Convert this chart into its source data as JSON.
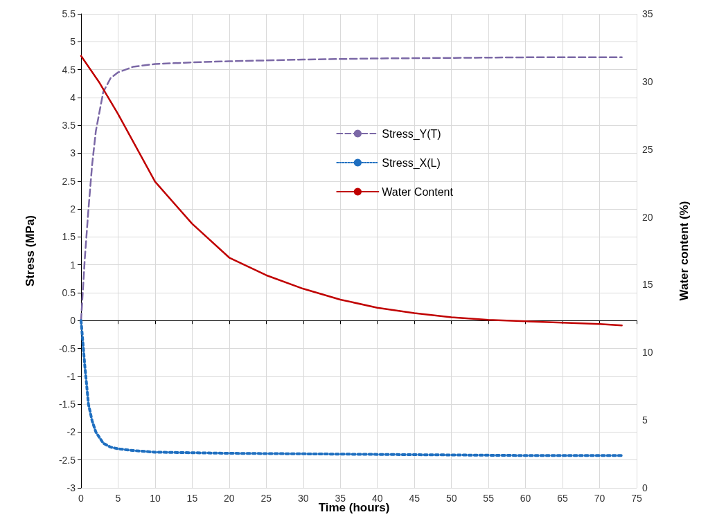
{
  "chart_data": {
    "type": "line",
    "xlabel": "Time (hours)",
    "ylabel": "Stress (MPa)",
    "y2label": "Water content (%)",
    "xlim": [
      0,
      75
    ],
    "xticks": [
      0,
      5,
      10,
      15,
      20,
      25,
      30,
      35,
      40,
      45,
      50,
      55,
      60,
      65,
      70,
      75
    ],
    "ylim": [
      -3,
      5.5
    ],
    "yticks": [
      -3,
      -2.5,
      -2,
      -1.5,
      -1,
      -0.5,
      0,
      0.5,
      1,
      1.5,
      2,
      2.5,
      3,
      3.5,
      4,
      4.5,
      5,
      5.5
    ],
    "y2lim": [
      0,
      35
    ],
    "y2ticks": [
      0,
      5,
      10,
      15,
      20,
      25,
      30,
      35
    ],
    "grid": true,
    "legend": "right",
    "marker": "none",
    "series": [
      {
        "name": "Stress_Y(T)",
        "color": "#7b68a6",
        "line_style": "dashed",
        "x": [
          0,
          0.5,
          1,
          1.5,
          2,
          3,
          4,
          5,
          7,
          10,
          15,
          20,
          30,
          40,
          50,
          60,
          73
        ],
        "values": [
          0,
          1.1,
          2.0,
          2.8,
          3.4,
          4.1,
          4.35,
          4.45,
          4.55,
          4.6,
          4.63,
          4.65,
          4.68,
          4.7,
          4.71,
          4.72,
          4.72
        ]
      },
      {
        "name": "Stress_X(L)",
        "color": "#1f6fc0",
        "line_style": "dotted",
        "x": [
          0,
          0.5,
          1,
          1.5,
          2,
          3,
          4,
          5,
          7,
          10,
          20,
          30,
          40,
          50,
          60,
          73
        ],
        "values": [
          0,
          -0.8,
          -1.5,
          -1.8,
          -2.0,
          -2.2,
          -2.27,
          -2.3,
          -2.33,
          -2.36,
          -2.38,
          -2.39,
          -2.4,
          -2.41,
          -2.42,
          -2.42
        ]
      },
      {
        "name": "Water Content",
        "color": "#c00000",
        "line_style": "solid",
        "axis": "y2",
        "x": [
          0,
          2.5,
          5,
          10,
          15,
          20,
          25,
          30,
          35,
          40,
          45,
          50,
          55,
          60,
          65,
          70,
          73
        ],
        "values": [
          31.9,
          29.9,
          27.6,
          22.6,
          19.5,
          17.0,
          15.7,
          14.7,
          13.9,
          13.3,
          12.9,
          12.6,
          12.4,
          12.3,
          12.2,
          12.1,
          12.0
        ]
      }
    ]
  }
}
